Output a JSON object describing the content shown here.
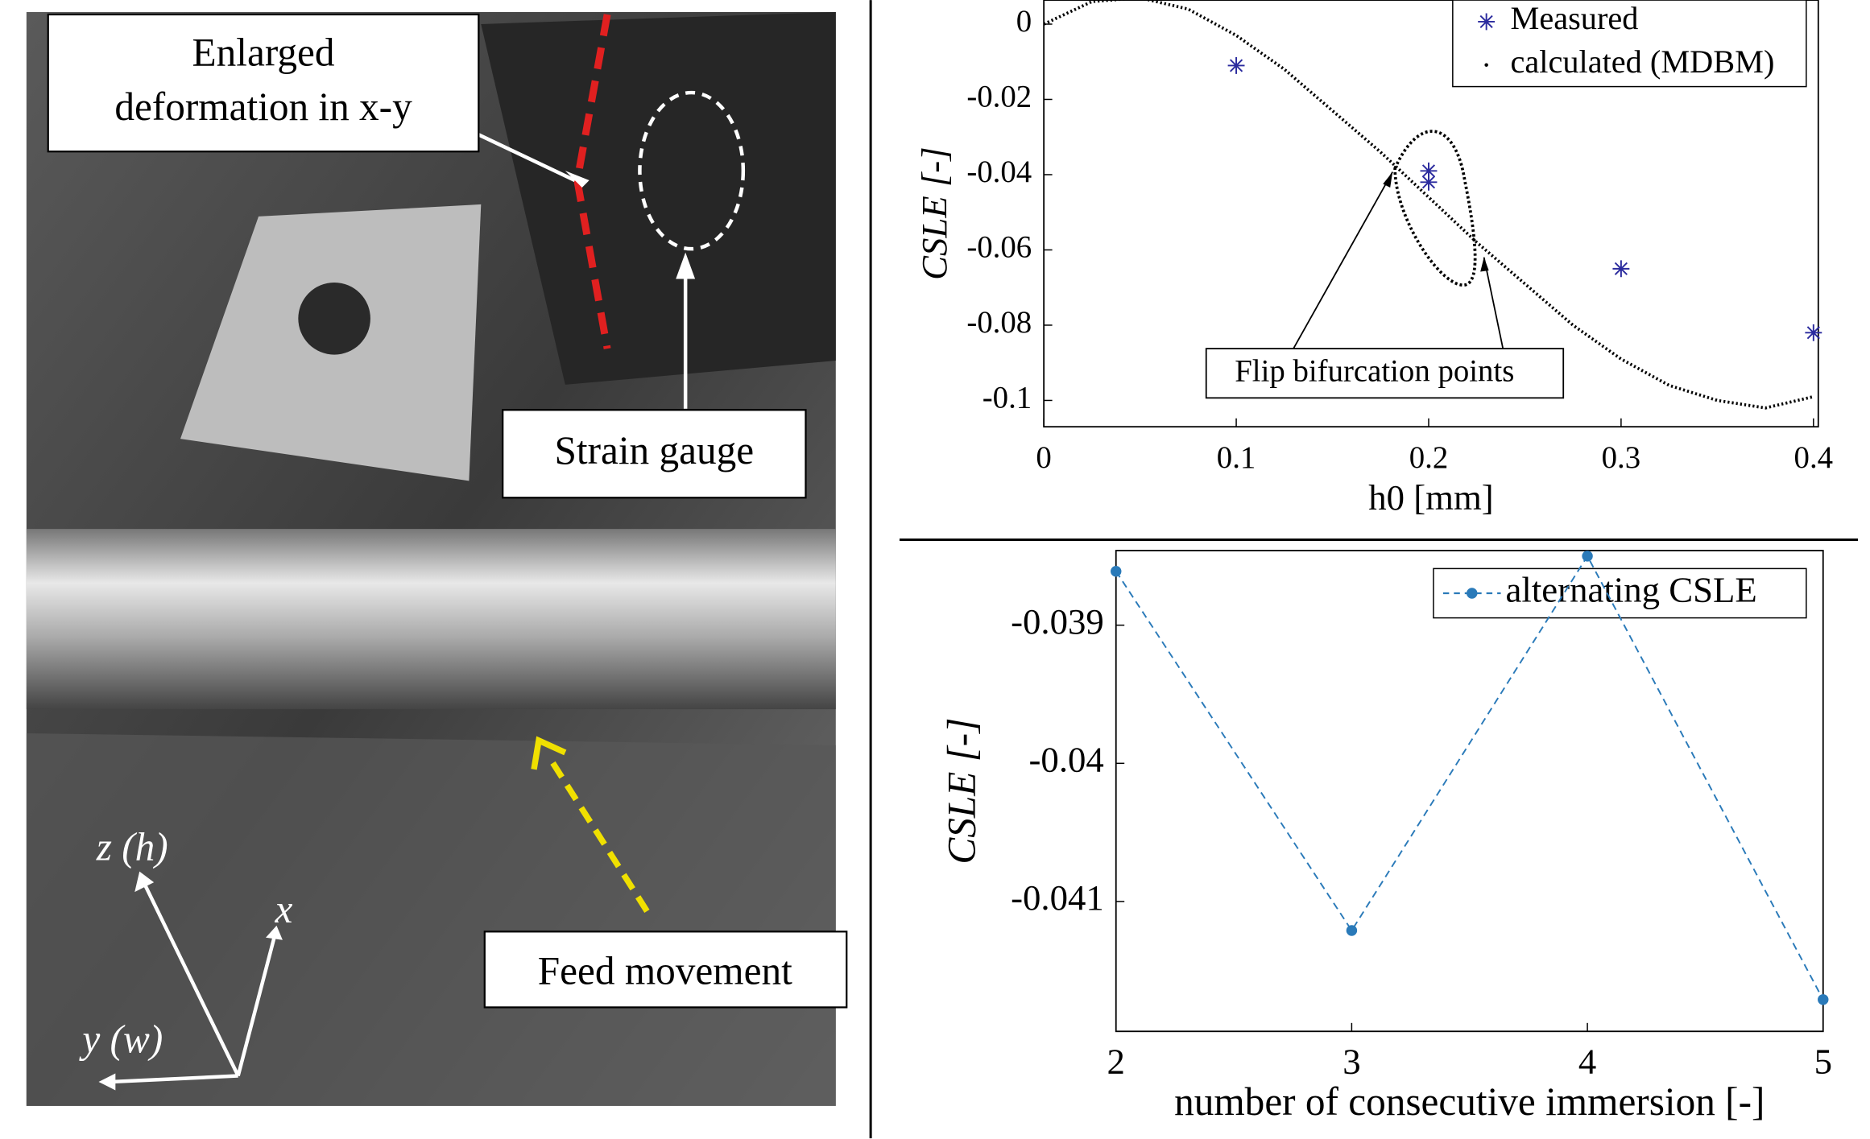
{
  "photo": {
    "labels": {
      "deformation": [
        "Enlarged",
        "deformation in x-y"
      ],
      "strain_gauge": "Strain gauge",
      "feed": "Feed movement",
      "axis_z": "z (h)",
      "axis_x": "x",
      "axis_y": "y (w)"
    }
  },
  "chart_data": [
    {
      "type": "scatter",
      "xlabel": "h0 [mm]",
      "ylabel": "CSLE [-]",
      "xlim": [
        0,
        0.4025
      ],
      "ylim": [
        -0.107,
        0.0064
      ],
      "xticks": [
        0,
        0.1,
        0.2,
        0.3,
        0.4
      ],
      "yticks": [
        0,
        -0.02,
        -0.04,
        -0.06,
        -0.08,
        -0.1
      ],
      "legend": "upper right",
      "annotation": "Flip bifurcation points",
      "series": [
        {
          "name": "Measured",
          "color": "#2b2b9e",
          "marker": "asterisk",
          "x": [
            0.1,
            0.2,
            0.2,
            0.3,
            0.4
          ],
          "values": [
            -0.011,
            -0.039,
            -0.042,
            -0.065,
            -0.082
          ]
        },
        {
          "name": "calculated (MDBM)",
          "color": "#000000",
          "marker": "dot",
          "x": [
            0,
            0.025,
            0.05,
            0.075,
            0.1,
            0.125,
            0.15,
            0.175,
            0.2,
            0.225,
            0.25,
            0.275,
            0.3,
            0.325,
            0.35,
            0.375,
            0.4
          ],
          "values": [
            0,
            0.006,
            0.007,
            0.004,
            -0.003,
            -0.012,
            -0.023,
            -0.034,
            -0.046,
            -0.058,
            -0.069,
            -0.08,
            -0.089,
            -0.096,
            -0.1,
            -0.102,
            -0.099
          ]
        }
      ]
    },
    {
      "type": "line",
      "xlabel": "number of consecutive immersion [-]",
      "ylabel": "CSLE [-]",
      "xlim": [
        2,
        5
      ],
      "ylim": [
        -0.04194,
        -0.03846
      ],
      "xticks": [
        2,
        3,
        4,
        5
      ],
      "yticks": [
        -0.039,
        -0.04,
        -0.041
      ],
      "legend": "upper right",
      "x": [
        2,
        3,
        4,
        5
      ],
      "series": [
        {
          "name": "alternating CSLE",
          "color": "#2a7ab9",
          "marker": "dot",
          "linestyle": "dashed",
          "values": [
            -0.03861,
            -0.04121,
            -0.0385,
            -0.04171
          ]
        }
      ]
    }
  ]
}
